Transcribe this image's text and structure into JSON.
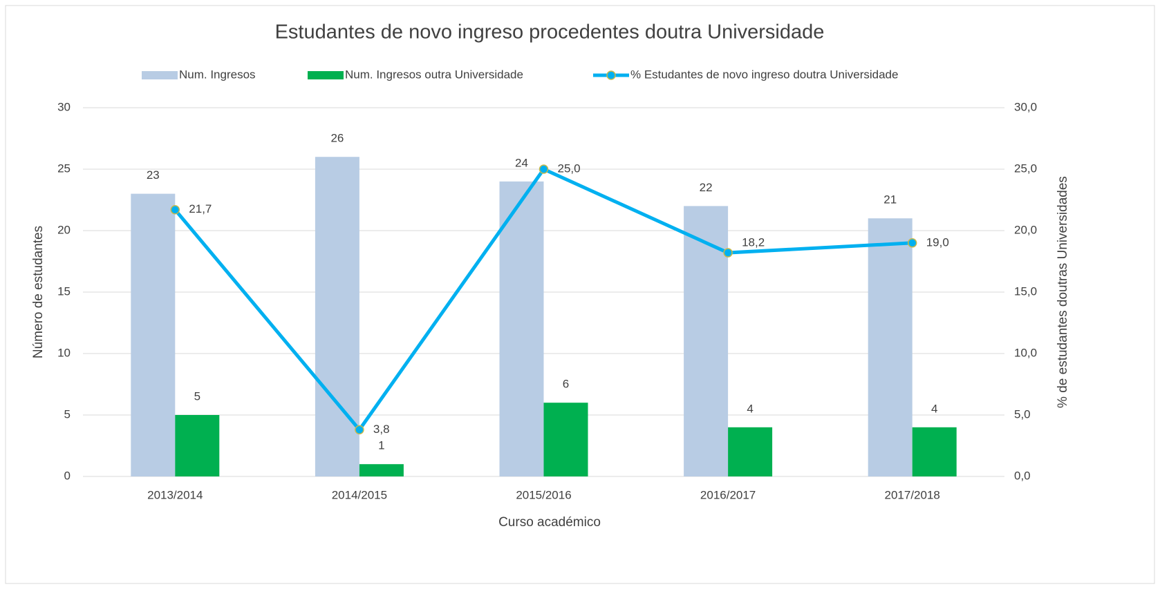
{
  "chart_data": {
    "type": "bar",
    "title": "Estudantes de novo ingreso procedentes doutra Universidade",
    "x_label": "Curso académico",
    "y_label": "Número de estudantes",
    "y2_label": "% de estudantes doutras Universidades",
    "categories": [
      "2013/2014",
      "2014/2015",
      "2015/2016",
      "2016/2017",
      "2017/2018"
    ],
    "series": [
      {
        "name": "Num. Ingresos",
        "color": "#b8cce4",
        "values": [
          23,
          26,
          24,
          22,
          21
        ]
      },
      {
        "name": "Num. Ingresos outra Universidade",
        "color": "#00b050",
        "values": [
          5,
          1,
          6,
          4,
          4
        ]
      },
      {
        "name": "% Estudantes de novo ingreso doutra Universidade",
        "type": "line",
        "axis": "y2",
        "color": "#00b0f0",
        "values": [
          21.7,
          3.8,
          25.0,
          18.2,
          19.0
        ],
        "value_labels": [
          "21,7",
          "3,8",
          "25,0",
          "18,2",
          "19,0"
        ]
      }
    ],
    "ylim": [
      0,
      30
    ],
    "yticks": [
      0,
      5,
      10,
      15,
      20,
      25,
      30
    ],
    "y2lim": [
      0,
      30
    ],
    "y2ticks": [
      {
        "value": 0,
        "label": "0,0"
      },
      {
        "value": 5,
        "label": "5,0"
      },
      {
        "value": 10,
        "label": "10,0"
      },
      {
        "value": 15,
        "label": "15,0"
      },
      {
        "value": 20,
        "label": "20,0"
      },
      {
        "value": 25,
        "label": "25,0"
      },
      {
        "value": 30,
        "label": "30,0"
      }
    ],
    "grid": true,
    "legend": "top"
  }
}
